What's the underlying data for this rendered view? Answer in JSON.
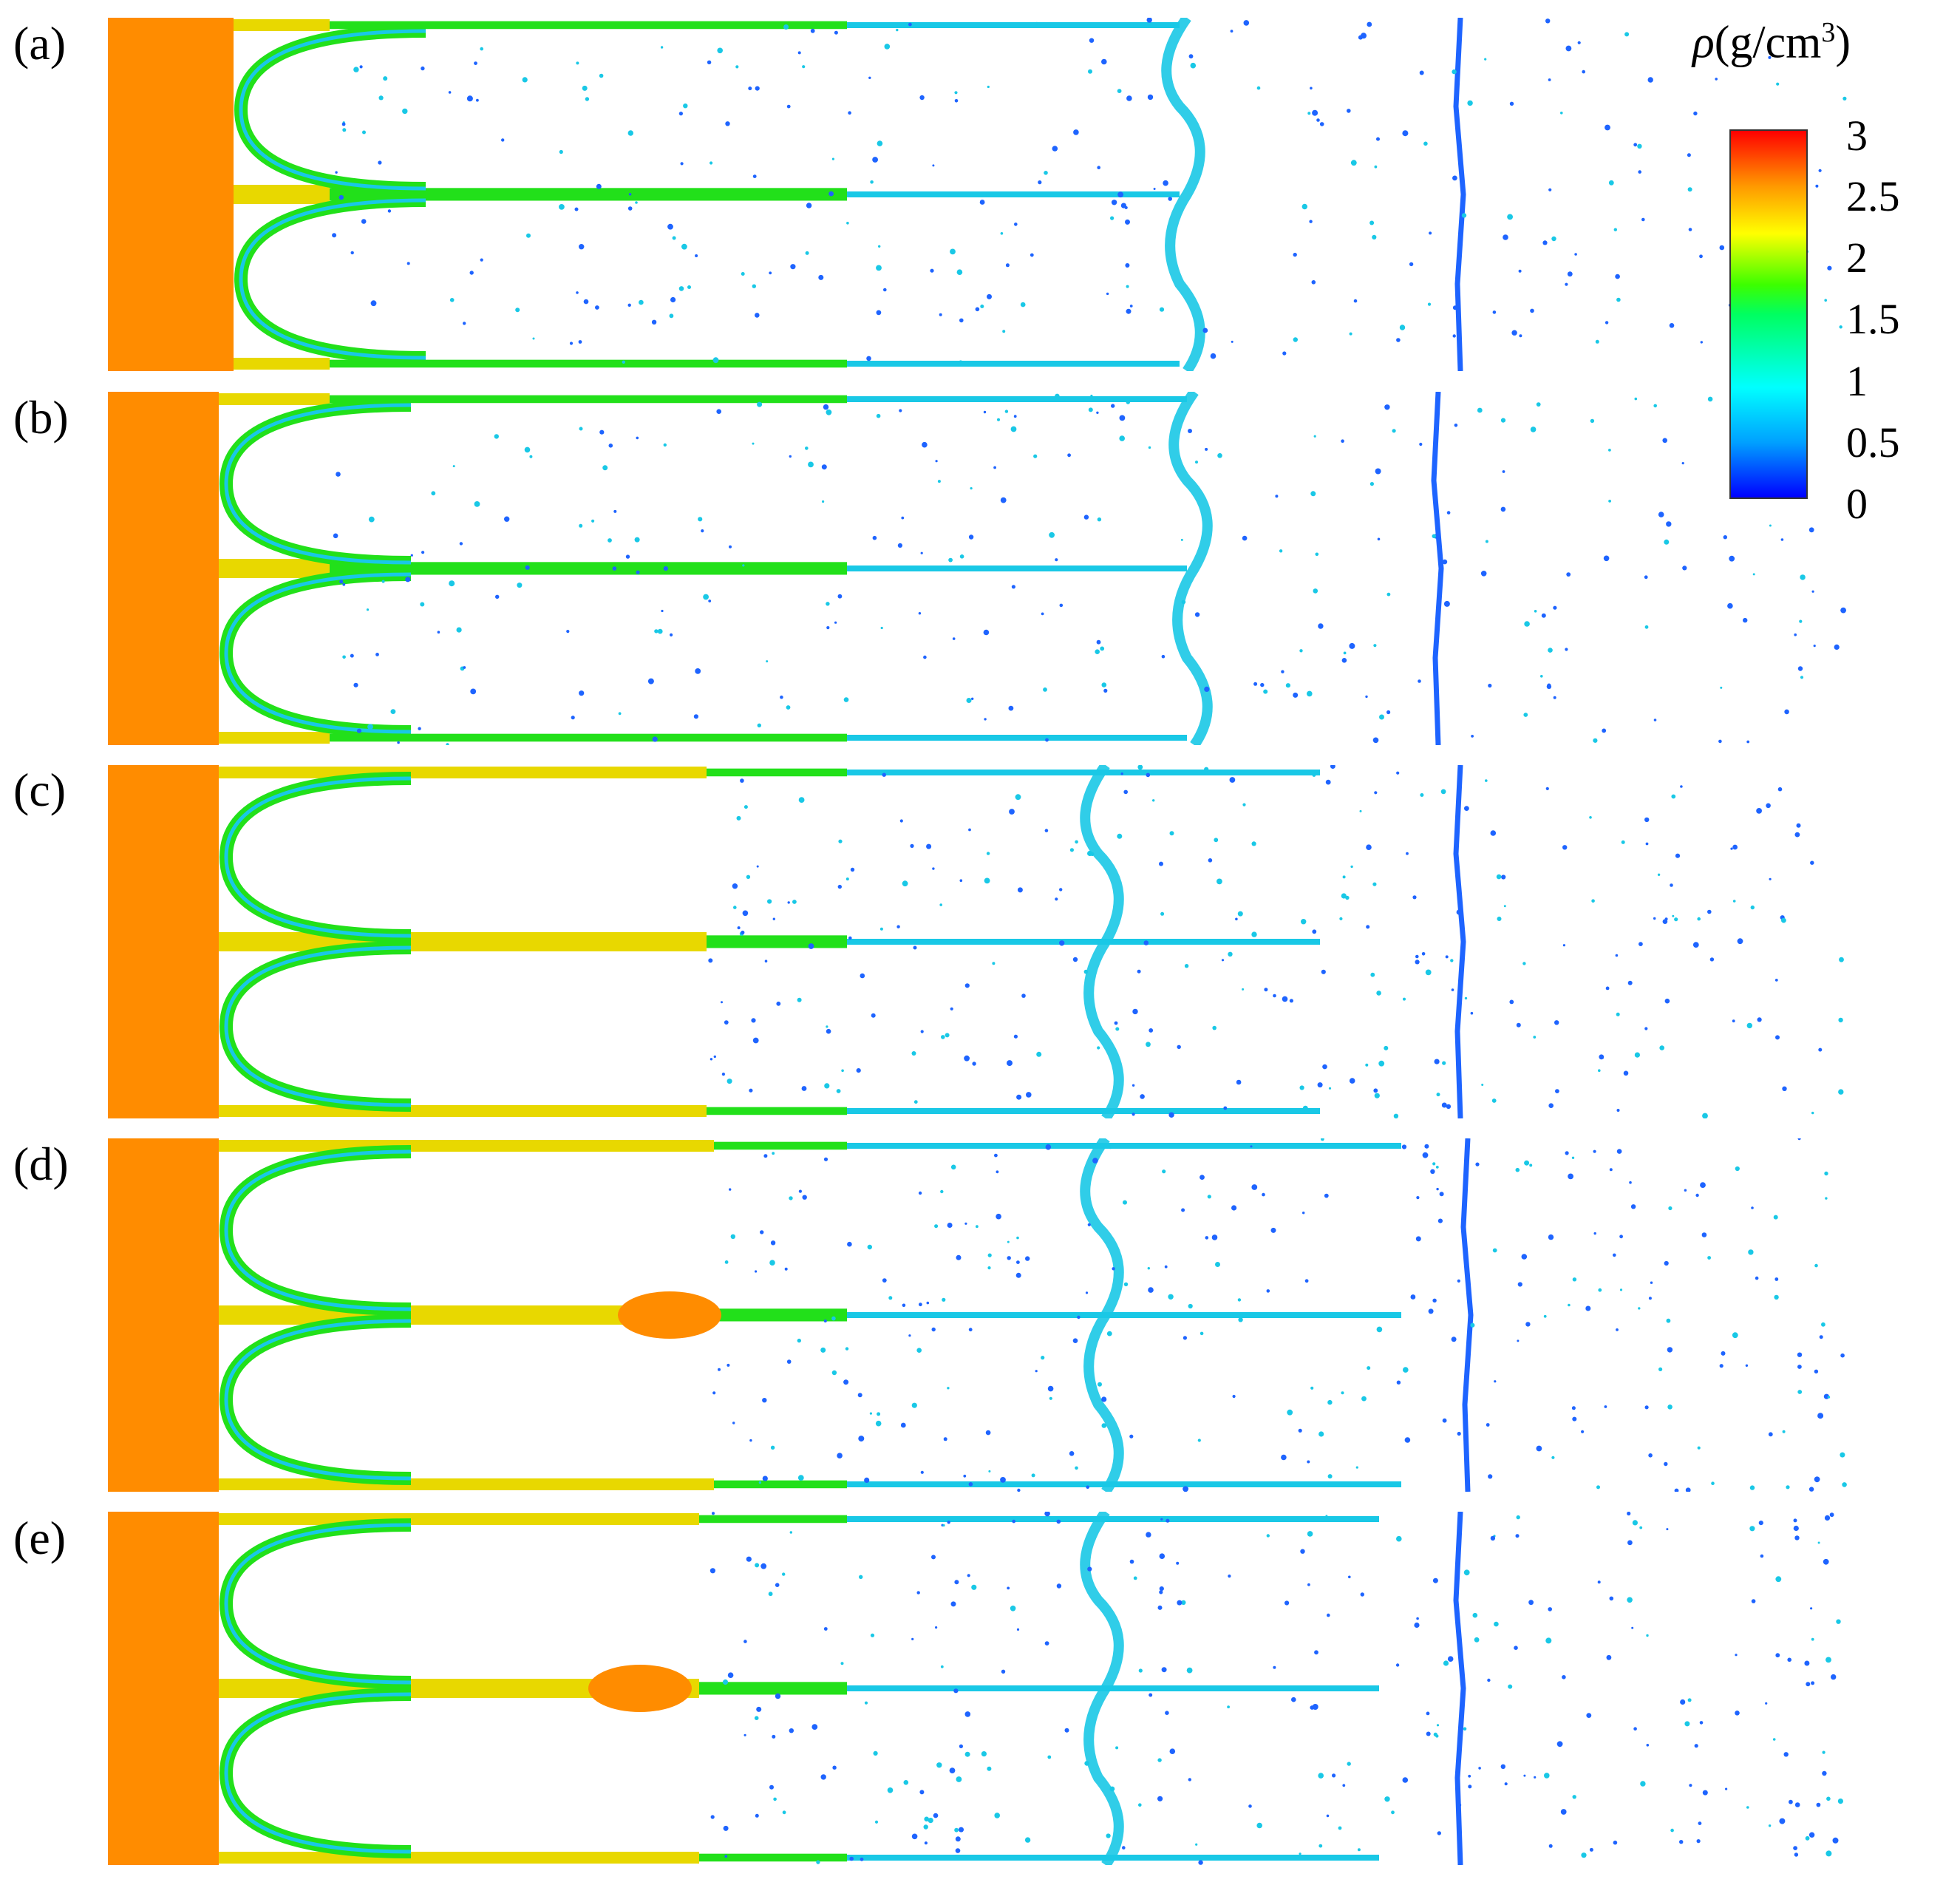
{
  "panels": [
    {
      "label": "(a)"
    },
    {
      "label": "(b)"
    },
    {
      "label": "(c)"
    },
    {
      "label": "(d)"
    },
    {
      "label": "(e)"
    }
  ],
  "colorbar": {
    "symbol": "ρ",
    "unit_prefix": "(g/cm",
    "unit_exp": "3",
    "unit_suffix": ")",
    "ticks": [
      "3",
      "2.5",
      "2",
      "1.5",
      "1",
      "0.5",
      "0"
    ],
    "colors": [
      "#0000ff",
      "#00a0ff",
      "#00ffff",
      "#00ff60",
      "#ffff00",
      "#ff9800",
      "#ff0000"
    ]
  },
  "colors": {
    "bulk": "#ff8c00",
    "rim_green": "#22e01a",
    "rim_yellow": "#e8d800",
    "spray_cyan": "#19c8e6",
    "spray_blue": "#1e64ff"
  }
}
